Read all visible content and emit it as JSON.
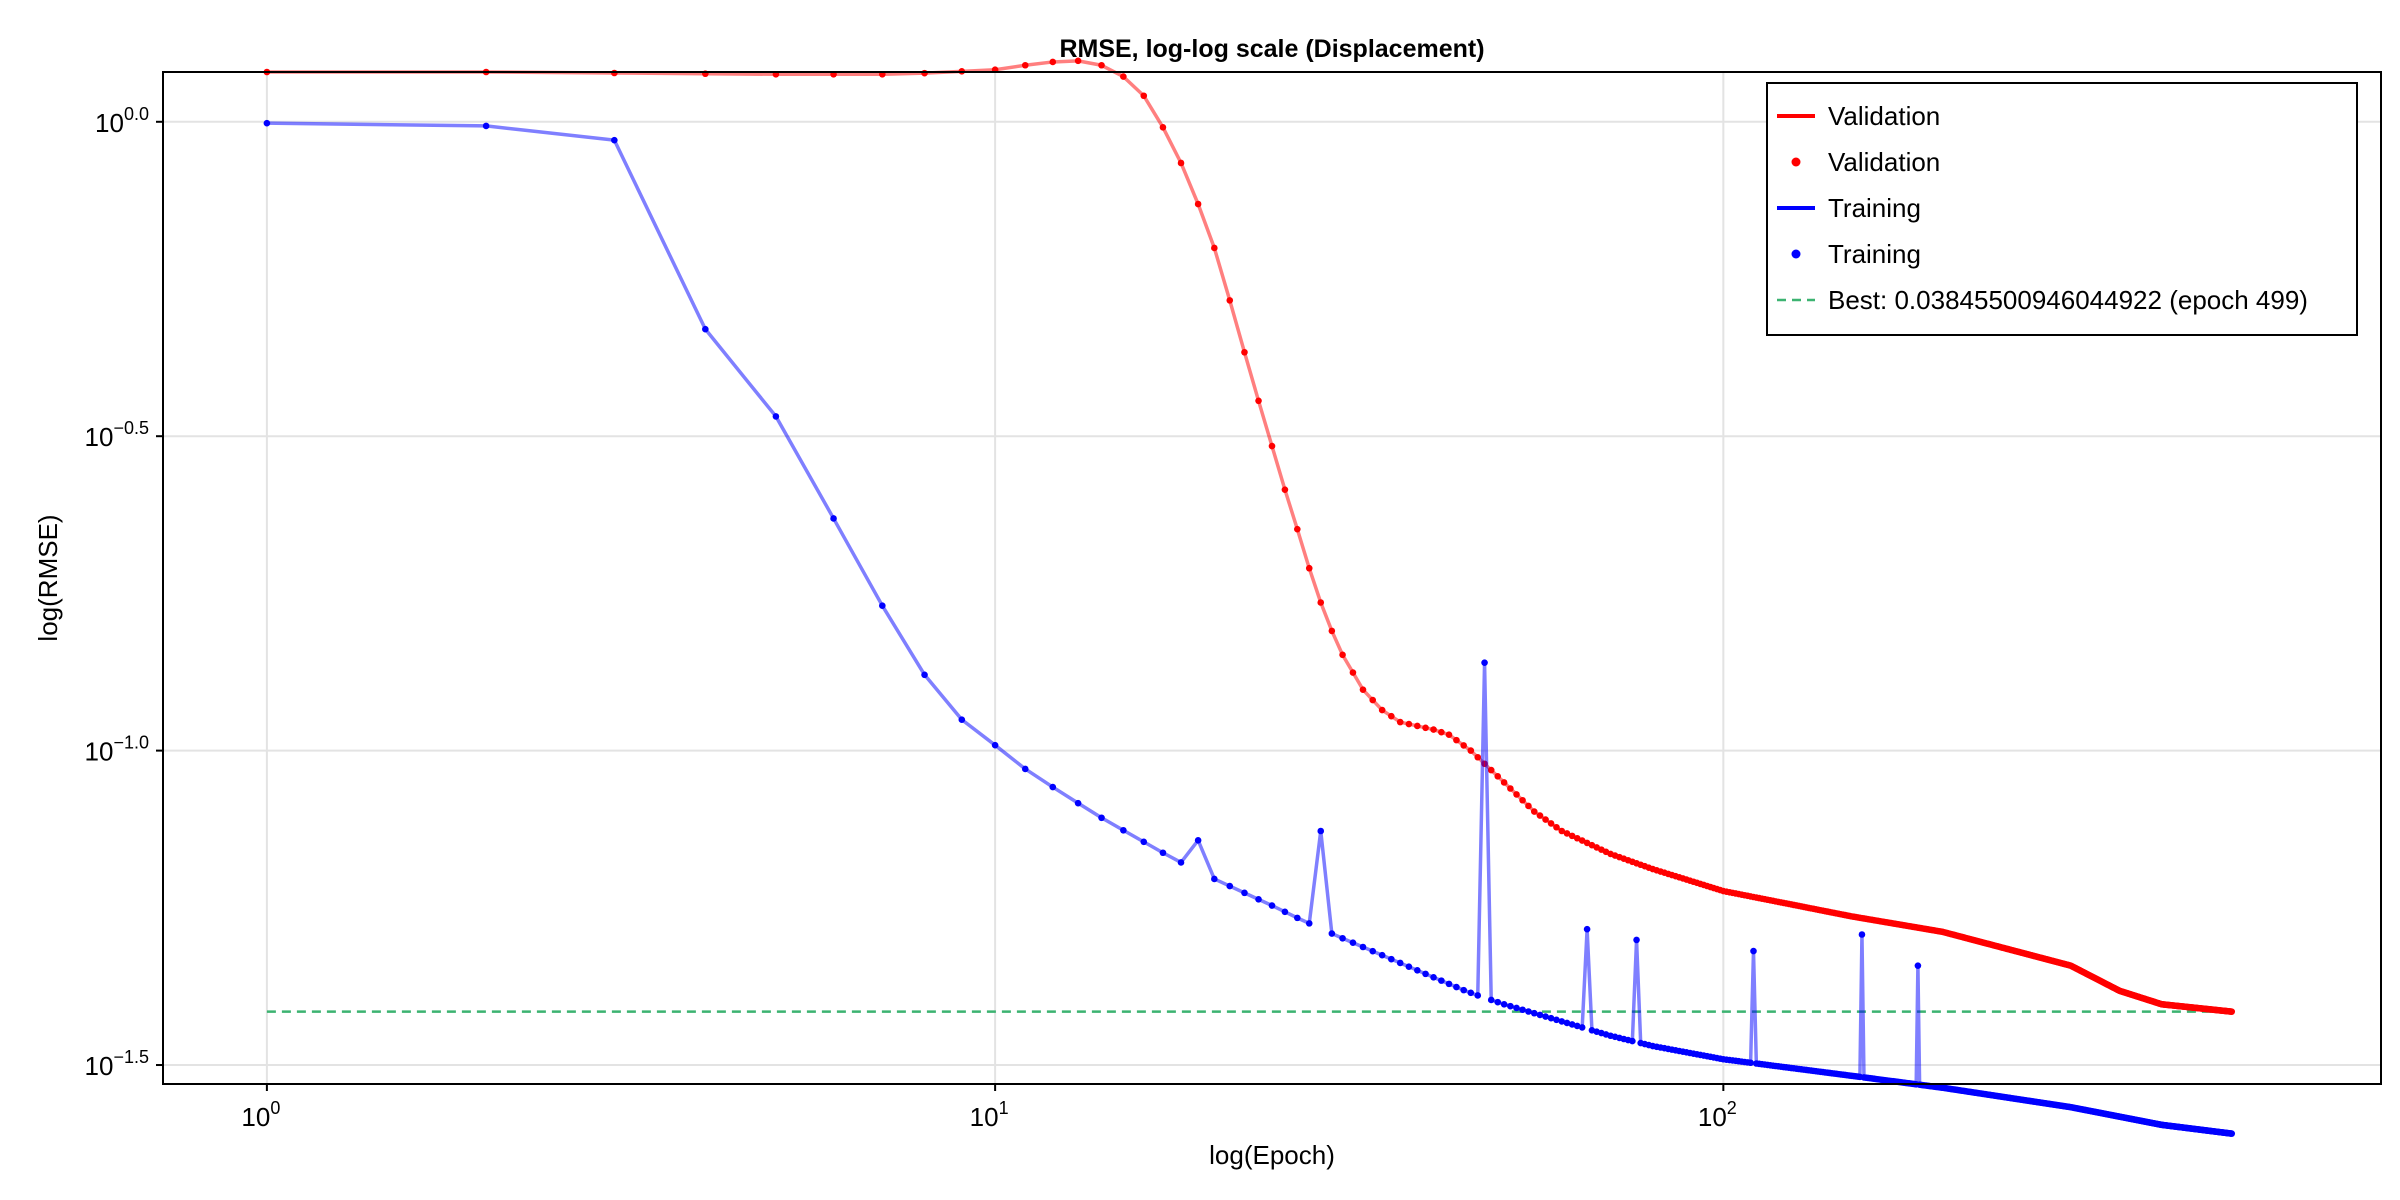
{
  "chart_data": {
    "type": "line",
    "title": "RMSE, log-log scale (Displacement)",
    "xlabel": "log(Epoch)",
    "ylabel": "log(RMSE)",
    "x_scale": "log10",
    "y_scale": "log10",
    "xlim": [
      0.72,
      800
    ],
    "ylim": [
      0.0295,
      1.2
    ],
    "grid": true,
    "legend_position": "top-right",
    "x_ticks": [
      {
        "value": 1,
        "base": "10",
        "exp": "0"
      },
      {
        "value": 10,
        "base": "10",
        "exp": "1"
      },
      {
        "value": 100,
        "base": "10",
        "exp": "2"
      }
    ],
    "y_ticks": [
      {
        "value": 1.0,
        "base": "10",
        "exp": "0.0"
      },
      {
        "value": 0.31623,
        "base": "10",
        "exp": "−0.5"
      },
      {
        "value": 0.1,
        "base": "10",
        "exp": "−1.0"
      },
      {
        "value": 0.031623,
        "base": "10",
        "exp": "−1.5"
      }
    ],
    "legend": [
      {
        "label": "Validation",
        "marker": "line",
        "color": "#ff0000"
      },
      {
        "label": "Validation",
        "marker": "dot",
        "color": "#ff0000"
      },
      {
        "label": "Training",
        "marker": "line",
        "color": "#0000ff"
      },
      {
        "label": "Training",
        "marker": "dot",
        "color": "#0000ff"
      },
      {
        "label": "Best: 0.03845500946044922 (epoch 499)",
        "marker": "dashed",
        "color": "#3cb371"
      }
    ],
    "best": {
      "value": 0.03845500946044922,
      "epoch": 499
    },
    "series": [
      {
        "name": "Validation",
        "color": "#ff0000",
        "anchors": [
          [
            1,
            1.2
          ],
          [
            2,
            1.2
          ],
          [
            5,
            1.19
          ],
          [
            7,
            1.19
          ],
          [
            8,
            1.195
          ],
          [
            10,
            1.21
          ],
          [
            11,
            1.23
          ],
          [
            12,
            1.245
          ],
          [
            13,
            1.25
          ],
          [
            14,
            1.23
          ],
          [
            15,
            1.18
          ],
          [
            16,
            1.1
          ],
          [
            17,
            0.98
          ],
          [
            18,
            0.86
          ],
          [
            19,
            0.74
          ],
          [
            20,
            0.63
          ],
          [
            21,
            0.52
          ],
          [
            22,
            0.43
          ],
          [
            23,
            0.36
          ],
          [
            24,
            0.305
          ],
          [
            25,
            0.26
          ],
          [
            26,
            0.225
          ],
          [
            27,
            0.195
          ],
          [
            28,
            0.172
          ],
          [
            29,
            0.155
          ],
          [
            30,
            0.142
          ],
          [
            32,
            0.125
          ],
          [
            34,
            0.116
          ],
          [
            36,
            0.111
          ],
          [
            40,
            0.108
          ],
          [
            42,
            0.106
          ],
          [
            45,
            0.1
          ],
          [
            50,
            0.089
          ],
          [
            55,
            0.08
          ],
          [
            60,
            0.0745
          ],
          [
            70,
            0.0685
          ],
          [
            80,
            0.0648
          ],
          [
            100,
            0.0598
          ],
          [
            150,
            0.0545
          ],
          [
            200,
            0.0515
          ],
          [
            300,
            0.0455
          ],
          [
            350,
            0.0415
          ],
          [
            400,
            0.0395
          ],
          [
            499,
            0.03845
          ]
        ]
      },
      {
        "name": "Training",
        "color": "#0000ff",
        "anchors": [
          [
            1,
            0.995
          ],
          [
            2,
            0.985
          ],
          [
            3,
            0.935
          ],
          [
            4,
            0.468
          ],
          [
            5,
            0.34
          ],
          [
            6,
            0.234
          ],
          [
            7,
            0.17
          ],
          [
            8,
            0.132
          ],
          [
            9,
            0.112
          ],
          [
            10,
            0.102
          ],
          [
            11,
            0.0935
          ],
          [
            12,
            0.0875
          ],
          [
            13,
            0.0825
          ],
          [
            14,
            0.0782
          ],
          [
            15,
            0.0747
          ],
          [
            16,
            0.0716
          ],
          [
            17,
            0.0688
          ],
          [
            18,
            0.0664
          ],
          [
            20,
            0.0625
          ],
          [
            22,
            0.0594
          ],
          [
            24,
            0.0567
          ],
          [
            26,
            0.0542
          ],
          [
            28,
            0.0521
          ],
          [
            30,
            0.0503
          ],
          [
            35,
            0.0466
          ],
          [
            40,
            0.0436
          ],
          [
            44,
            0.0416
          ],
          [
            46,
            0.0408
          ],
          [
            50,
            0.0395
          ],
          [
            60,
            0.0371
          ],
          [
            70,
            0.0352
          ],
          [
            80,
            0.0339
          ],
          [
            100,
            0.0323
          ],
          [
            150,
            0.0304
          ],
          [
            200,
            0.0291
          ],
          [
            300,
            0.0271
          ],
          [
            400,
            0.0254
          ],
          [
            499,
            0.0246
          ]
        ],
        "spikes": [
          [
            19,
            0.072
          ],
          [
            28,
            0.0745
          ],
          [
            47,
            0.138
          ],
          [
            65,
            0.052
          ],
          [
            76,
            0.05
          ],
          [
            110,
            0.048
          ],
          [
            155,
            0.051
          ],
          [
            185,
            0.0455
          ]
        ]
      }
    ]
  }
}
